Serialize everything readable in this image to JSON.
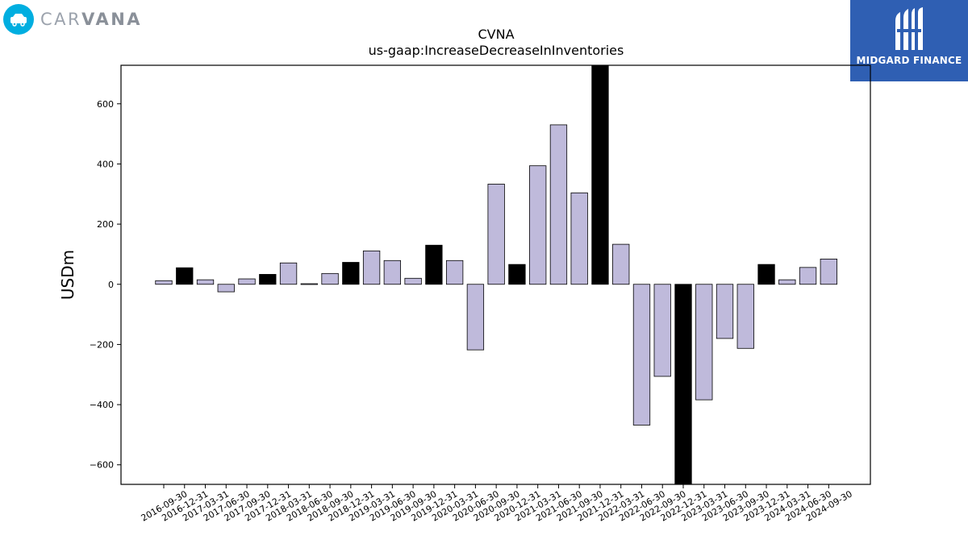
{
  "branding": {
    "left_logo_text_light": "CAR",
    "left_logo_text_bold": "VANA",
    "right_logo_text": "MIDGARD FINANCE",
    "left_logo_color": "#00aee0",
    "right_logo_bg": "#2f5fb3"
  },
  "chart_data": {
    "type": "bar",
    "title": "CVNA",
    "subtitle": "us-gaap:IncreaseDecreaseInInventories",
    "ylabel": "USDm",
    "xlabel": "",
    "ylim": [
      -665,
      728
    ],
    "yticks": [
      -600,
      -400,
      -200,
      0,
      200,
      400,
      600
    ],
    "categories": [
      "2016-09-30",
      "2016-12-31",
      "2017-03-31",
      "2017-06-30",
      "2017-09-30",
      "2017-12-31",
      "2018-03-31",
      "2018-06-30",
      "2018-09-30",
      "2018-12-31",
      "2019-03-31",
      "2019-06-30",
      "2019-09-30",
      "2019-12-31",
      "2020-03-31",
      "2020-06-30",
      "2020-09-30",
      "2020-12-31",
      "2021-03-31",
      "2021-06-30",
      "2021-09-30",
      "2021-12-31",
      "2022-03-31",
      "2022-06-30",
      "2022-09-30",
      "2022-12-31",
      "2023-03-31",
      "2023-06-30",
      "2023-09-30",
      "2023-12-31",
      "2024-03-31",
      "2024-06-30",
      "2024-09-30"
    ],
    "values": [
      12,
      55,
      15,
      -25,
      18,
      33,
      71,
      2,
      36,
      73,
      111,
      79,
      20,
      130,
      79,
      -218,
      333,
      66,
      394,
      530,
      304,
      760,
      133,
      -468,
      -306,
      -700,
      -384,
      -180,
      -213,
      66,
      15,
      56,
      84
    ],
    "fiscal_year_end": [
      false,
      true,
      false,
      false,
      false,
      true,
      false,
      false,
      false,
      true,
      false,
      false,
      false,
      true,
      false,
      false,
      false,
      true,
      false,
      false,
      false,
      true,
      false,
      false,
      false,
      true,
      false,
      false,
      false,
      true,
      false,
      false,
      false
    ],
    "colors": {
      "quarter": "#bfbadb",
      "year_end": "#000000",
      "edge": "#000000"
    },
    "grid": false,
    "legend": "none"
  }
}
